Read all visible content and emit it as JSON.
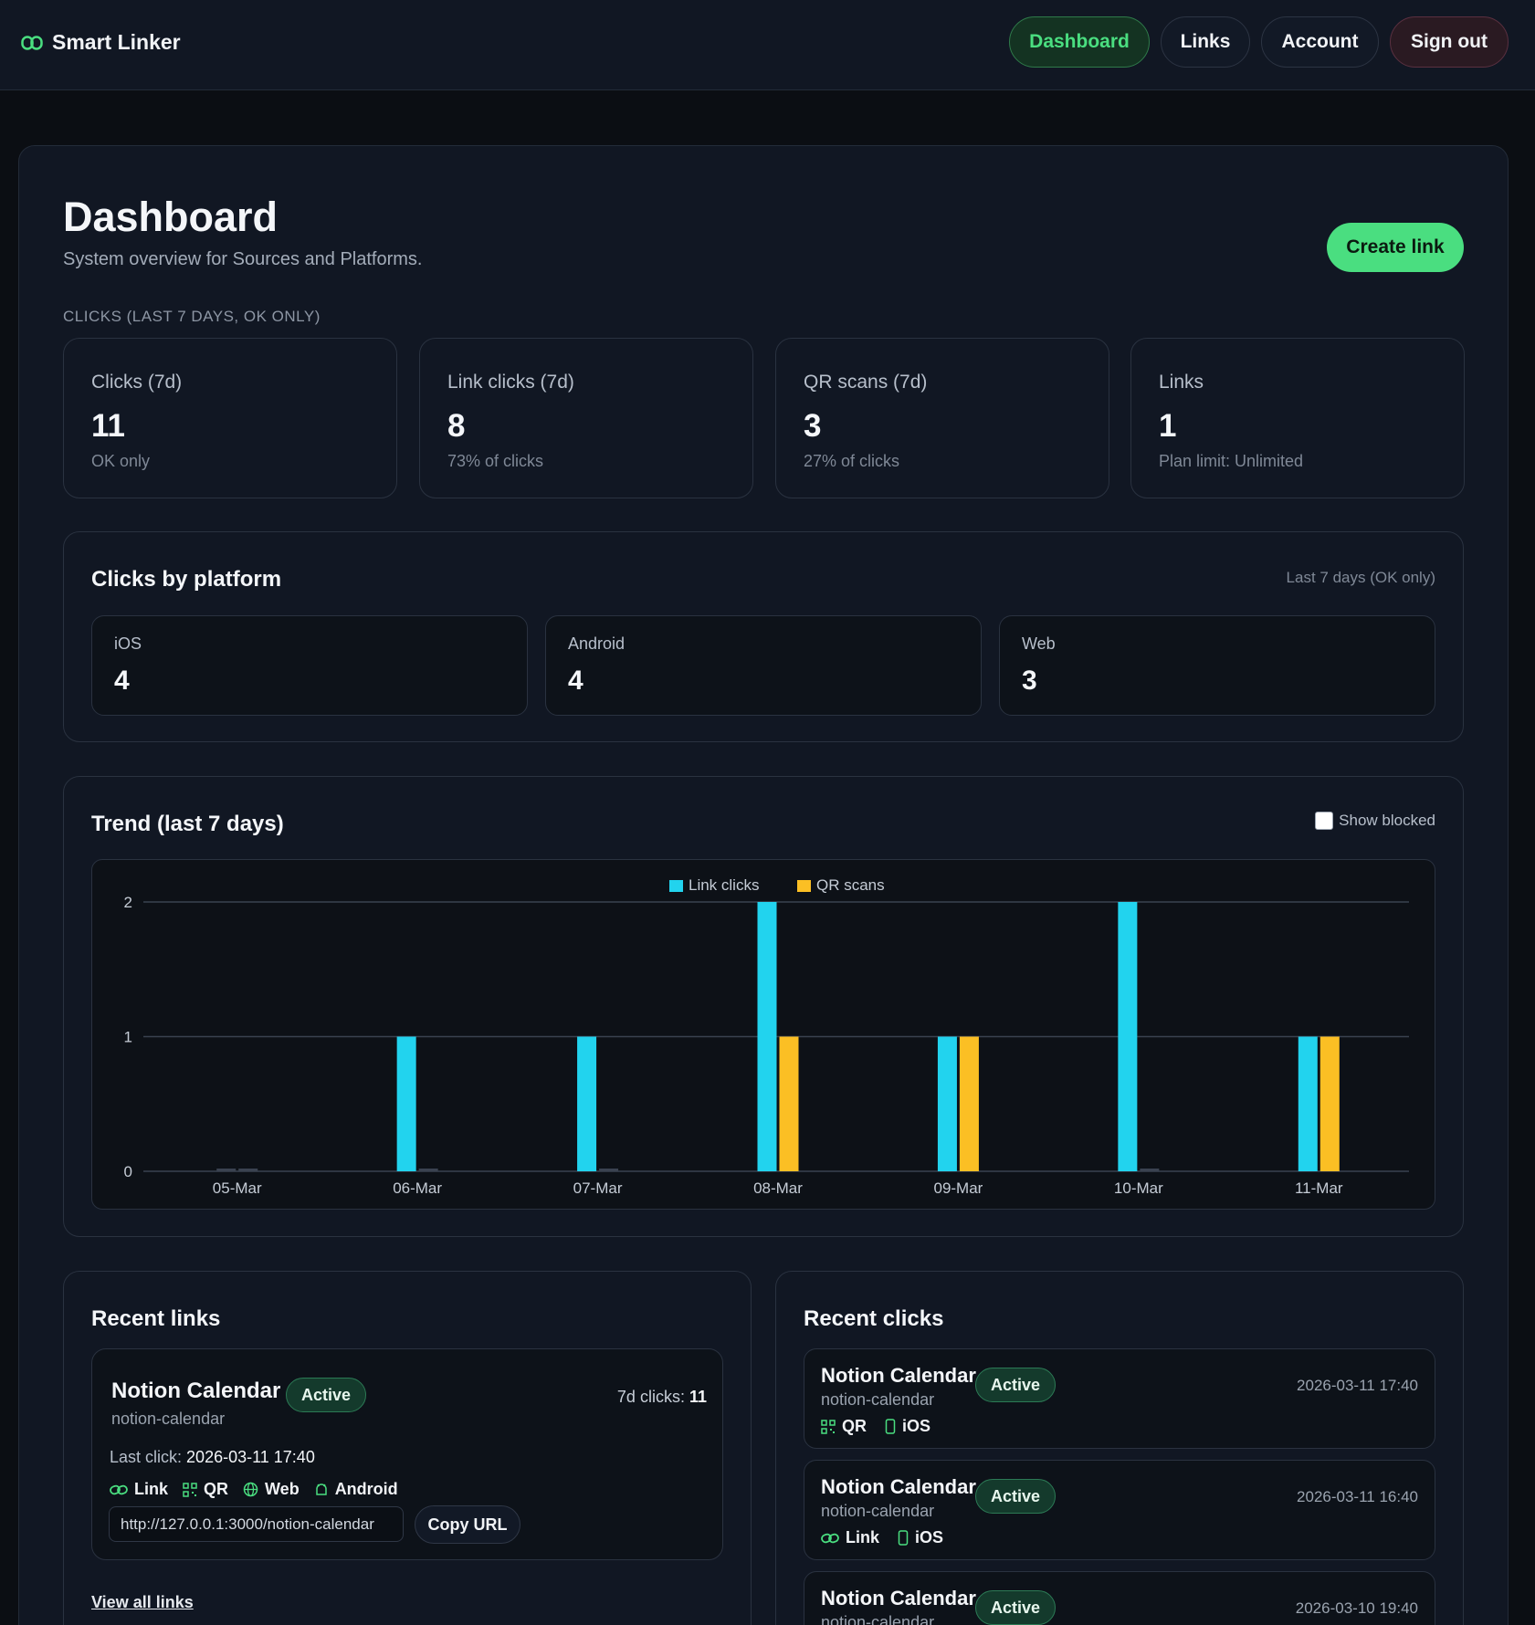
{
  "app": {
    "name": "Smart Linker"
  },
  "nav": {
    "dashboard": "Dashboard",
    "links": "Links",
    "account": "Account",
    "signout": "Sign out"
  },
  "page": {
    "title": "Dashboard",
    "subtitle": "System overview for Sources and Platforms.",
    "create_button": "Create link",
    "section_label": "CLICKS (LAST 7 DAYS, OK ONLY)"
  },
  "stats": [
    {
      "label": "Clicks (7d)",
      "value": "11",
      "sub": "OK only"
    },
    {
      "label": "Link clicks (7d)",
      "value": "8",
      "sub": "73% of clicks"
    },
    {
      "label": "QR scans (7d)",
      "value": "3",
      "sub": "27% of clicks"
    },
    {
      "label": "Links",
      "value": "1",
      "sub": "Plan limit: Unlimited"
    }
  ],
  "platforms": {
    "title": "Clicks by platform",
    "note": "Last 7 days (OK only)",
    "items": [
      {
        "label": "iOS",
        "value": "4"
      },
      {
        "label": "Android",
        "value": "4"
      },
      {
        "label": "Web",
        "value": "3"
      }
    ]
  },
  "trend": {
    "title": "Trend (last 7 days)",
    "show_blocked_label": "Show blocked",
    "show_blocked_checked": false
  },
  "chart_data": {
    "type": "bar",
    "categories": [
      "05-Mar",
      "06-Mar",
      "07-Mar",
      "08-Mar",
      "09-Mar",
      "10-Mar",
      "11-Mar"
    ],
    "series": [
      {
        "name": "Link clicks",
        "color": "#22d3ee",
        "values": [
          0,
          1,
          1,
          2,
          1,
          2,
          1
        ]
      },
      {
        "name": "QR scans",
        "color": "#fbbf24",
        "values": [
          0,
          0,
          0,
          1,
          1,
          0,
          1
        ]
      }
    ],
    "ylim": [
      0,
      2
    ],
    "yticks": [
      "0",
      "1",
      "2"
    ],
    "grid": true,
    "legend": "top-center"
  },
  "recent_links": {
    "title": "Recent links",
    "items": [
      {
        "name": "Notion Calendar",
        "slug": "notion-calendar",
        "status": "Active",
        "clicks_label": "7d clicks:",
        "clicks_value": "11",
        "last_click_label": "Last click:",
        "last_click_value": "2026-03-11 17:40",
        "tags": [
          {
            "icon": "link-icon",
            "label": "Link"
          },
          {
            "icon": "qr-icon",
            "label": "QR"
          },
          {
            "icon": "globe-icon",
            "label": "Web"
          },
          {
            "icon": "android-icon",
            "label": "Android"
          }
        ],
        "url": "http://127.0.0.1:3000/notion-calendar",
        "copy_label": "Copy URL"
      }
    ],
    "view_all": "View all links"
  },
  "recent_clicks": {
    "title": "Recent clicks",
    "items": [
      {
        "name": "Notion Calendar",
        "slug": "notion-calendar",
        "status": "Active",
        "time": "2026-03-11 17:40",
        "source_icon": "qr-icon",
        "source": "QR",
        "platform_icon": "phone-icon",
        "platform": "iOS"
      },
      {
        "name": "Notion Calendar",
        "slug": "notion-calendar",
        "status": "Active",
        "time": "2026-03-11 16:40",
        "source_icon": "link-icon",
        "source": "Link",
        "platform_icon": "phone-icon",
        "platform": "iOS"
      },
      {
        "name": "Notion Calendar",
        "slug": "notion-calendar",
        "status": "Active",
        "time": "2026-03-10 19:40"
      }
    ]
  },
  "colors": {
    "accent": "#4ade80",
    "link_series": "#22d3ee",
    "qr_series": "#fbbf24",
    "badge_bg": "#143a2c"
  }
}
